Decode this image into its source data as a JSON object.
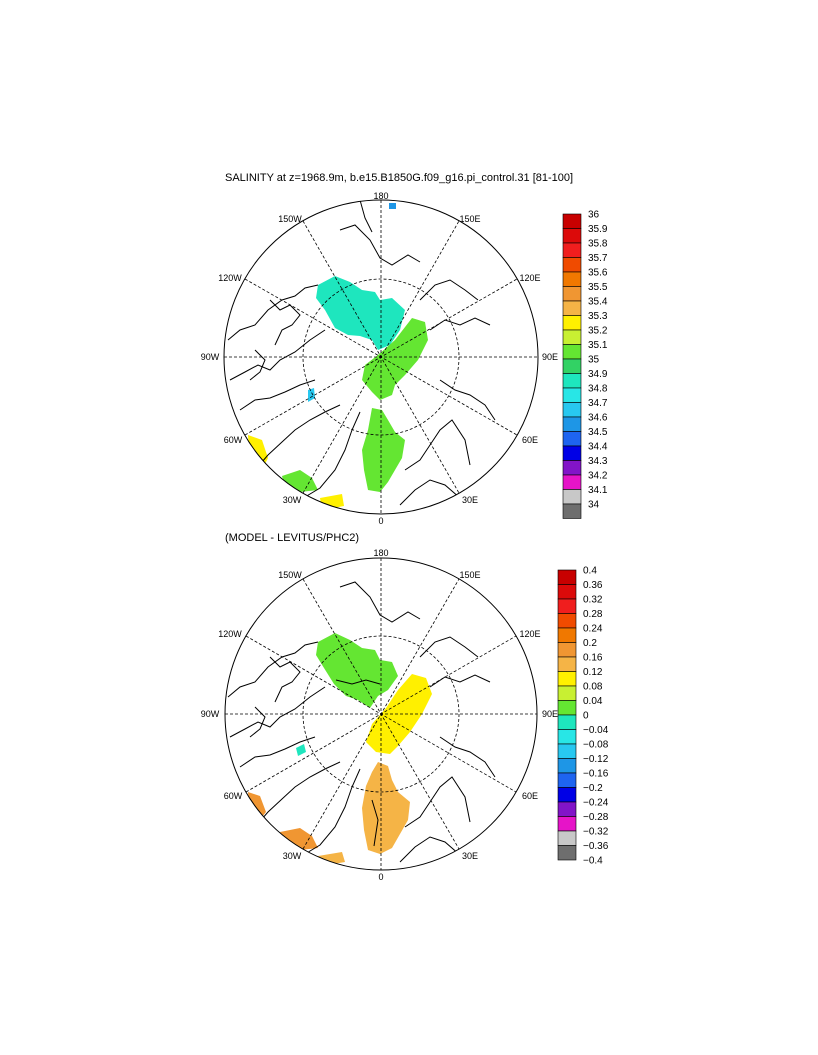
{
  "panel1": {
    "title": "SALINITY at z=1968.9m, b.e15.B1850G.f09_g16.pi_control.31 [81-100]",
    "lon_labels": {
      "top": "180",
      "tl": "150W",
      "tr": "150E",
      "ul": "120W",
      "ur": "120E",
      "l": "90W",
      "r": "90E",
      "ll": "60W",
      "lr": "60E",
      "bl": "30W",
      "br": "30E",
      "bottom": "0"
    },
    "colorbar": {
      "labels": [
        "36",
        "35.9",
        "35.8",
        "35.7",
        "35.6",
        "35.5",
        "35.4",
        "35.3",
        "35.2",
        "35.1",
        "35",
        "34.9",
        "34.8",
        "34.7",
        "34.6",
        "34.5",
        "34.4",
        "34.3",
        "34.2",
        "34.1",
        "34"
      ],
      "colors": [
        "#c80000",
        "#dc0a0a",
        "#f01e1e",
        "#f04b00",
        "#f07800",
        "#f09632",
        "#f5b446",
        "#fff000",
        "#c8f032",
        "#64e632",
        "#32d264",
        "#1ee6be",
        "#28e6e6",
        "#28c8f0",
        "#1e96e6",
        "#1e64f0",
        "#0000e6",
        "#8214c8",
        "#e614c8",
        "#c8c8c8",
        "#6e6e6e"
      ]
    }
  },
  "panel2": {
    "title": "(MODEL - LEVITUS/PHC2)",
    "lon_labels": {
      "top": "180",
      "tl": "150W",
      "tr": "150E",
      "ul": "120W",
      "ur": "120E",
      "l": "90W",
      "r": "90E",
      "ll": "60W",
      "lr": "60E",
      "bl": "30W",
      "br": "30E",
      "bottom": "0"
    },
    "colorbar": {
      "labels": [
        "0.4",
        "0.36",
        "0.32",
        "0.28",
        "0.24",
        "0.2",
        "0.16",
        "0.12",
        "0.08",
        "0.04",
        "0",
        "−0.04",
        "−0.08",
        "−0.12",
        "−0.16",
        "−0.2",
        "−0.24",
        "−0.28",
        "−0.32",
        "−0.36",
        "−0.4"
      ],
      "colors": [
        "#c80000",
        "#dc0a0a",
        "#f01e1e",
        "#f04b00",
        "#f07800",
        "#f09632",
        "#f5b446",
        "#fff000",
        "#c8f032",
        "#64e632",
        "#1ee6be",
        "#28e6e6",
        "#28c8f0",
        "#1e96e6",
        "#1e64f0",
        "#0000e6",
        "#8214c8",
        "#e614c8",
        "#c8c8c8",
        "#6e6e6e"
      ]
    }
  }
}
